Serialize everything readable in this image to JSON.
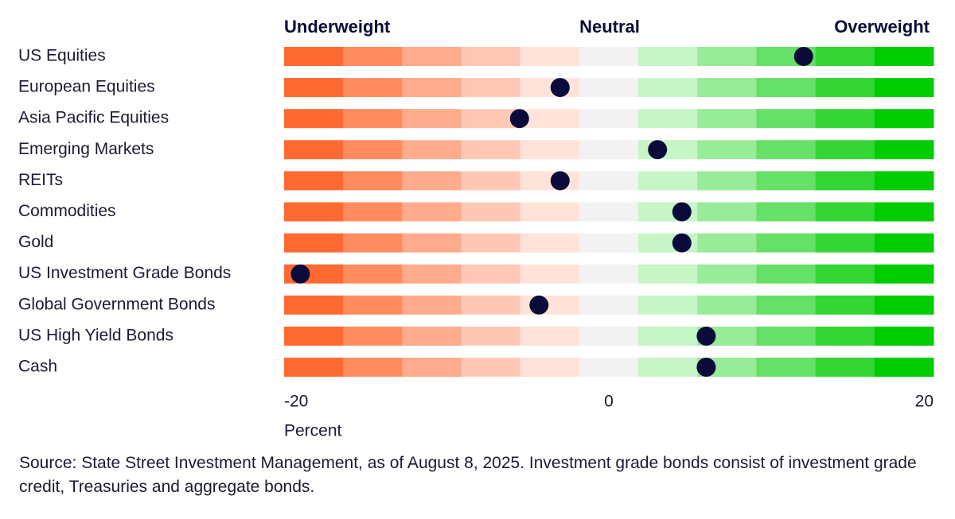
{
  "chart_data": {
    "type": "dot",
    "header_labels": [
      "Underweight",
      "Neutral",
      "Overweight"
    ],
    "categories": [
      "US Equities",
      "European Equities",
      "Asia Pacific Equities",
      "Emerging Markets",
      "REITs",
      "Commodities",
      "Gold",
      "US Investment Grade Bonds",
      "Global Government Bonds",
      "US High Yield Bonds",
      "Cash"
    ],
    "values": [
      12,
      -3,
      -5.5,
      3,
      -3,
      4.5,
      4.5,
      -19,
      -4.3,
      6,
      6
    ],
    "color": "#0b0b3b",
    "band_colors": [
      "#ff6a33",
      "#ff8c5f",
      "#ffab8c",
      "#ffc9b5",
      "#ffe3d9",
      "#f2f2f2",
      "#c6f5c6",
      "#98eb98",
      "#66e066",
      "#33d633",
      "#00cc00"
    ],
    "xlim": [
      -20,
      20
    ],
    "xticks": [
      -20,
      0,
      20
    ],
    "xlabel": "Percent",
    "source": "Source: State Street Investment Management, as of August 8, 2025. Investment grade bonds consist of investment grade credit, Treasuries and aggregate bonds."
  }
}
